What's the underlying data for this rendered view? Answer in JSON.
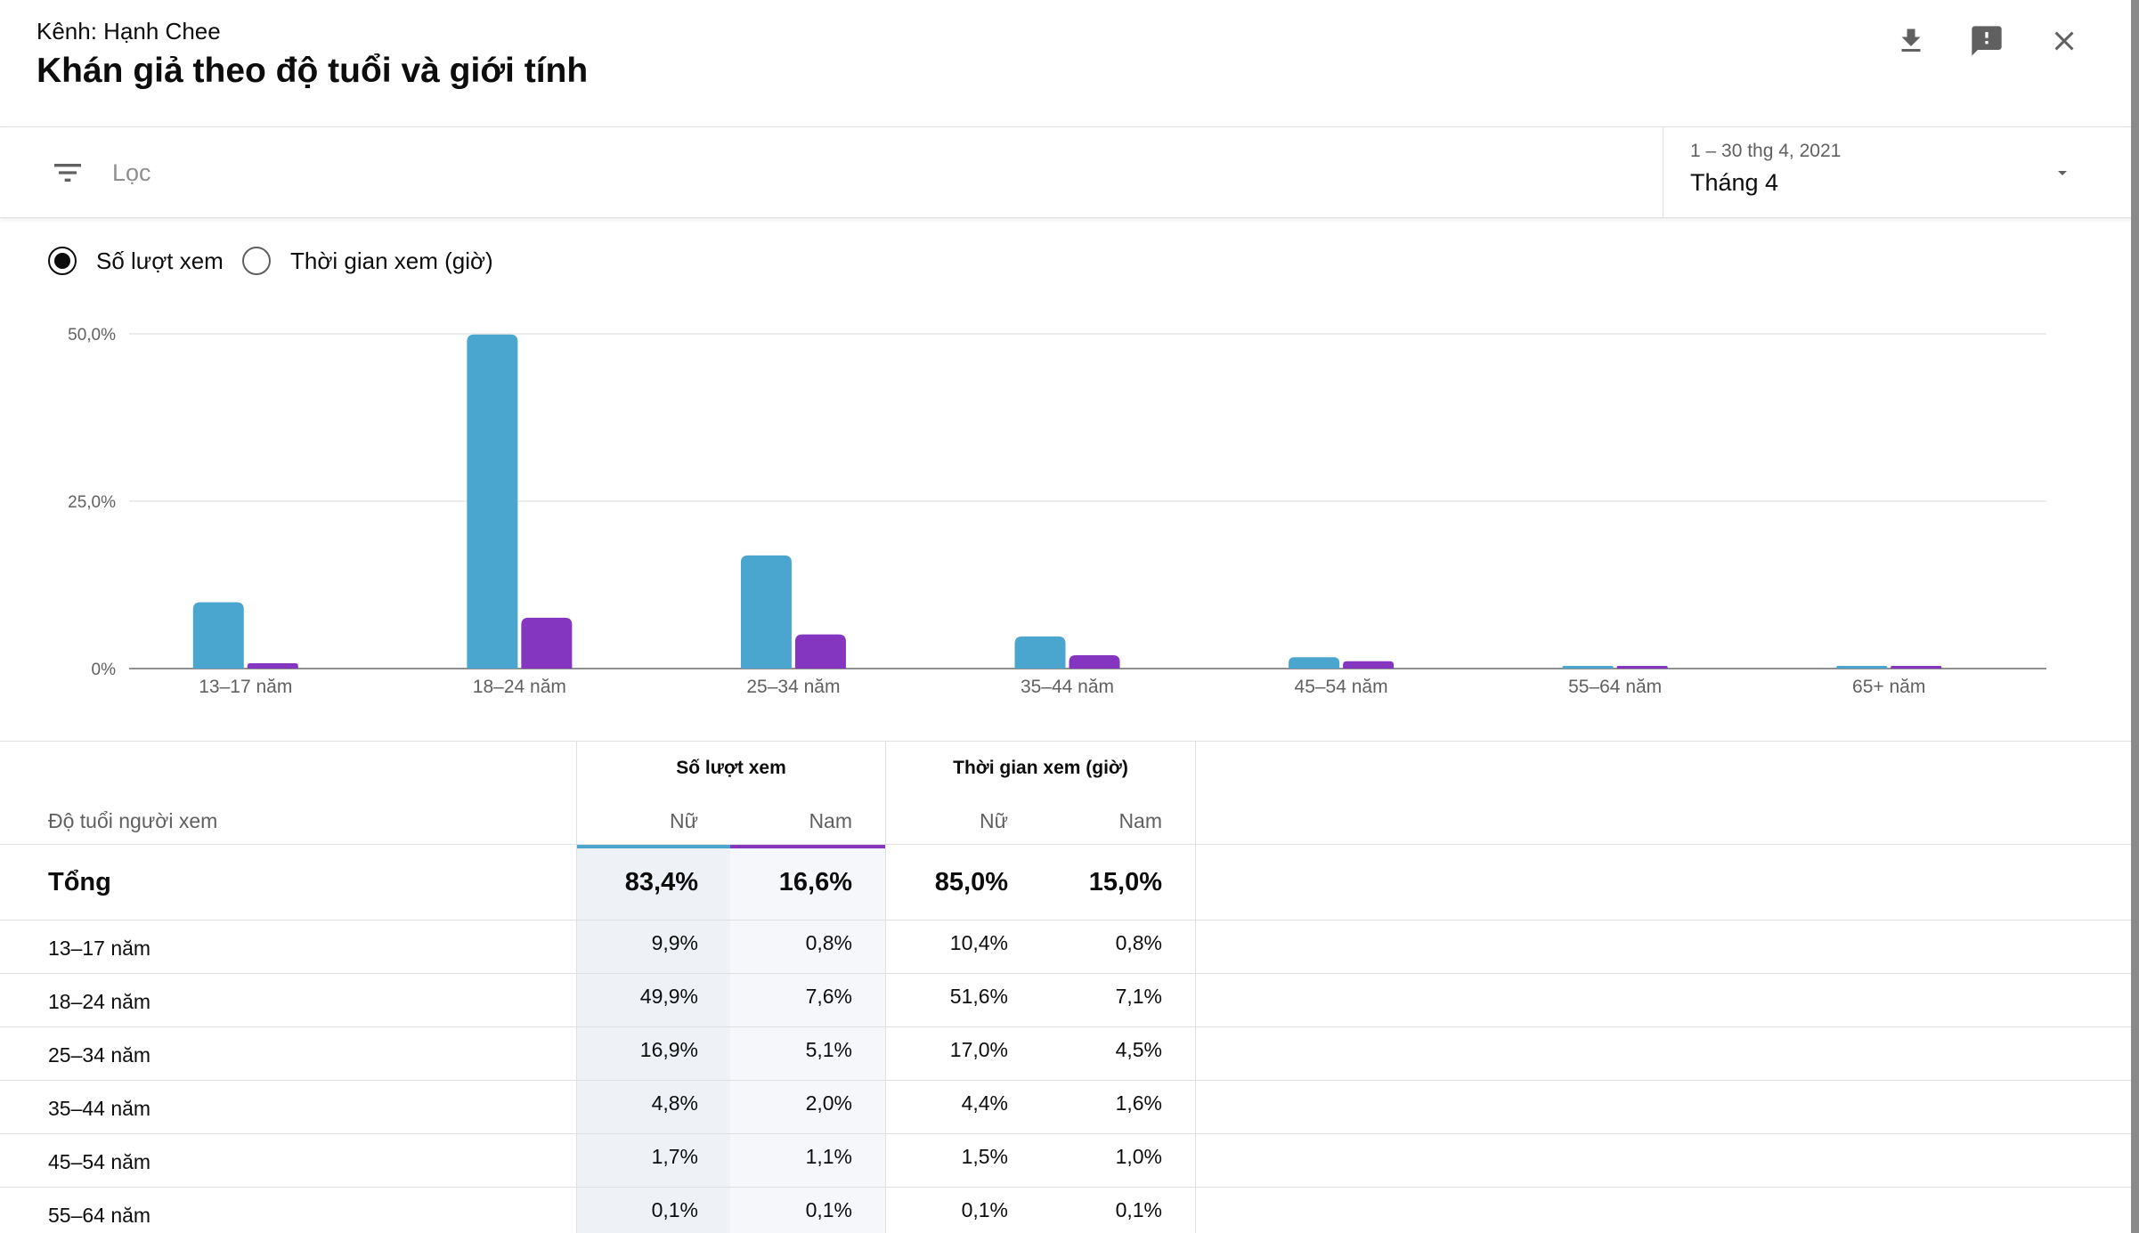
{
  "header": {
    "channel_label": "Kênh: Hạnh Chee",
    "title": "Khán giả theo độ tuổi và giới tính",
    "download_icon": "download-icon",
    "feedback_icon": "feedback-icon",
    "close_icon": "close-icon"
  },
  "filter": {
    "placeholder": "Lọc",
    "icon": "filter-icon",
    "date_range": "1 – 30 thg 4, 2021",
    "date_label": "Tháng 4"
  },
  "metric_toggle": {
    "options": [
      {
        "label": "Số lượt xem",
        "selected": true
      },
      {
        "label": "Thời gian xem (giờ)",
        "selected": false
      }
    ]
  },
  "colors": {
    "female": "#4aa6cf",
    "male": "#8436c0",
    "grid": "#e6e6e6",
    "axis": "#909090"
  },
  "chart_data": {
    "type": "bar",
    "title": "",
    "xlabel": "",
    "ylabel": "",
    "ylim": [
      0,
      50
    ],
    "y_ticks": [
      "0%",
      "25,0%",
      "50,0%"
    ],
    "y_tick_values": [
      0,
      25,
      50
    ],
    "categories": [
      "13–17 năm",
      "18–24 năm",
      "25–34 năm",
      "35–44 năm",
      "45–54 năm",
      "55–64 năm",
      "65+ năm"
    ],
    "series": [
      {
        "name": "Nữ",
        "values": [
          9.9,
          49.9,
          16.9,
          4.8,
          1.7,
          0.1,
          0.1
        ]
      },
      {
        "name": "Nam",
        "values": [
          0.8,
          7.6,
          5.1,
          2.0,
          1.1,
          0.1,
          0.1
        ]
      }
    ]
  },
  "table": {
    "age_header": "Độ tuổi người xem",
    "groups": [
      "Số lượt xem",
      "Thời gian xem (giờ)"
    ],
    "sub_headers": [
      "Nữ",
      "Nam",
      "Nữ",
      "Nam"
    ],
    "total": {
      "label": "Tổng",
      "values": [
        "83,4%",
        "16,6%",
        "85,0%",
        "15,0%"
      ]
    },
    "rows": [
      {
        "age": "13–17 năm",
        "values": [
          "9,9%",
          "0,8%",
          "10,4%",
          "0,8%"
        ]
      },
      {
        "age": "18–24 năm",
        "values": [
          "49,9%",
          "7,6%",
          "51,6%",
          "7,1%"
        ]
      },
      {
        "age": "25–34 năm",
        "values": [
          "16,9%",
          "5,1%",
          "17,0%",
          "4,5%"
        ]
      },
      {
        "age": "35–44 năm",
        "values": [
          "4,8%",
          "2,0%",
          "4,4%",
          "1,6%"
        ]
      },
      {
        "age": "45–54 năm",
        "values": [
          "1,7%",
          "1,1%",
          "1,5%",
          "1,0%"
        ]
      },
      {
        "age": "55–64 năm",
        "values": [
          "0,1%",
          "0,1%",
          "0,1%",
          "0,1%"
        ]
      }
    ]
  }
}
